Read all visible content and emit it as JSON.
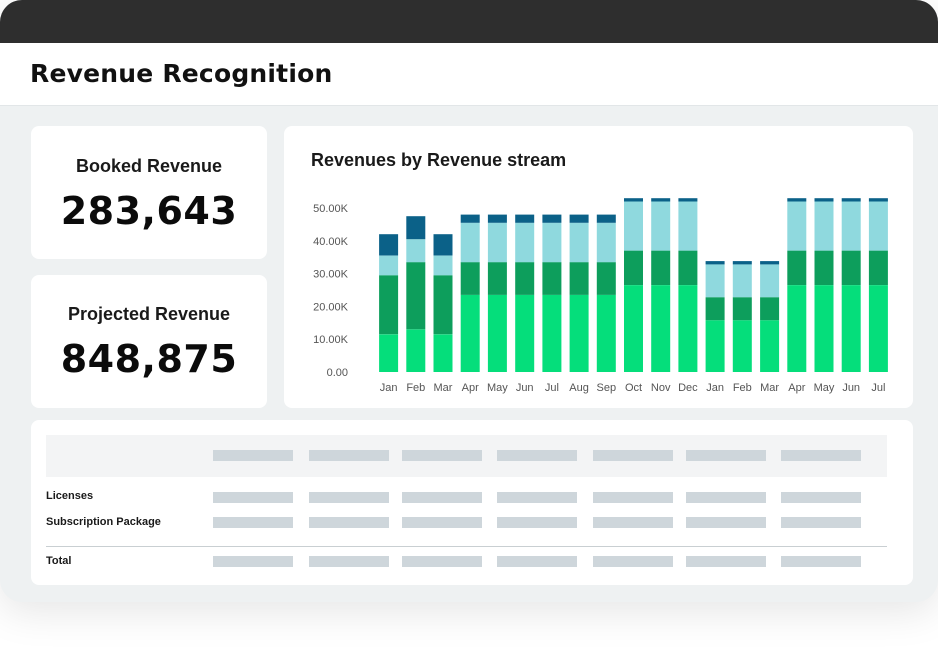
{
  "header": {
    "title": "Revenue Recognition"
  },
  "kpis": {
    "booked": {
      "label": "Booked Revenue",
      "value": "283,643"
    },
    "projected": {
      "label": "Projected Revenue",
      "value": "848,875"
    }
  },
  "chart": {
    "title": "Revenues by Revenue stream"
  },
  "chart_data": {
    "type": "bar",
    "stacked": true,
    "title": "Revenues by Revenue stream",
    "categories": [
      "Jan",
      "Feb",
      "Mar",
      "Apr",
      "May",
      "Jun",
      "Jul",
      "Aug",
      "Sep",
      "Oct",
      "Nov",
      "Dec",
      "Jan",
      "Feb",
      "Mar",
      "Apr",
      "May",
      "Jun",
      "Jul"
    ],
    "y_tick_labels": [
      "0.00",
      "10.00K",
      "20.00K",
      "30.00K",
      "40.00K",
      "50.00K"
    ],
    "ylim": [
      0,
      55000
    ],
    "grid": false,
    "series": [
      {
        "color": "#05de7b",
        "values": [
          11500,
          13000,
          11500,
          23500,
          23500,
          23500,
          23500,
          23500,
          23500,
          26500,
          26500,
          26500,
          15800,
          15800,
          15800,
          26500,
          26500,
          26500,
          26500
        ]
      },
      {
        "color": "#0d9e5c",
        "values": [
          18000,
          20500,
          18000,
          10000,
          10000,
          10000,
          10000,
          10000,
          10000,
          10500,
          10500,
          10500,
          7000,
          7000,
          7000,
          10500,
          10500,
          10500,
          10500
        ]
      },
      {
        "color": "#8fd9de",
        "values": [
          6000,
          7000,
          6000,
          12000,
          12000,
          12000,
          12000,
          12000,
          12000,
          15000,
          15000,
          15000,
          10000,
          10000,
          10000,
          15000,
          15000,
          15000,
          15000
        ]
      },
      {
        "color": "#0b6188",
        "values": [
          6500,
          7000,
          6500,
          2500,
          2500,
          2500,
          2500,
          2500,
          2500,
          1000,
          1000,
          1000,
          1000,
          1000,
          1000,
          1000,
          1000,
          1000,
          1000
        ]
      }
    ]
  },
  "table": {
    "rows": [
      {
        "label": "Licenses"
      },
      {
        "label": "Subscription Package"
      },
      {
        "label": "Total"
      }
    ]
  }
}
